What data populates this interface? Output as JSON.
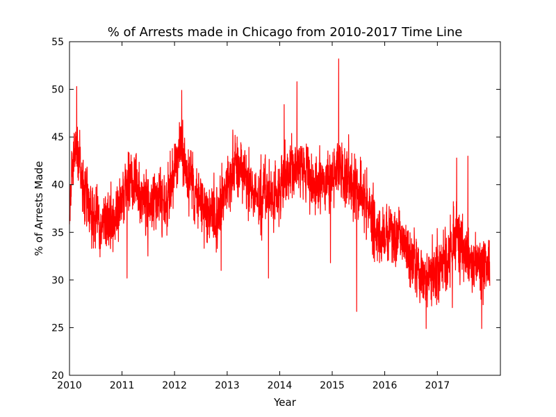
{
  "chart_data": {
    "type": "line",
    "title": "% of Arrests made in Chicago from 2010-2017 Time Line",
    "xlabel": "Year",
    "ylabel": "% of Arrests Made",
    "xlim": [
      "2010-01-01",
      "2018-03-15"
    ],
    "ylim": [
      20,
      55
    ],
    "x_ticks": [
      "2010",
      "2011",
      "2012",
      "2013",
      "2014",
      "2015",
      "2016",
      "2017"
    ],
    "y_ticks": [
      20,
      25,
      30,
      35,
      40,
      45,
      50,
      55
    ],
    "grid": false,
    "legend": "none",
    "series": [
      {
        "color": "#ff0000",
        "frequency": "daily",
        "x_start": "2010-01-01",
        "x_end": "2017-12-31",
        "y_noise_amplitude": 3.2,
        "y_trend": [
          {
            "x": "2010-01-01",
            "y": 39.0
          },
          {
            "x": "2010-02-15",
            "y": 44.5
          },
          {
            "x": "2010-04-15",
            "y": 39.0
          },
          {
            "x": "2010-08-01",
            "y": 36.0
          },
          {
            "x": "2010-11-15",
            "y": 36.0
          },
          {
            "x": "2011-02-15",
            "y": 41.0
          },
          {
            "x": "2011-06-01",
            "y": 38.0
          },
          {
            "x": "2011-11-01",
            "y": 38.0
          },
          {
            "x": "2012-02-15",
            "y": 43.5
          },
          {
            "x": "2012-06-01",
            "y": 38.5
          },
          {
            "x": "2012-10-15",
            "y": 36.5
          },
          {
            "x": "2013-03-01",
            "y": 42.5
          },
          {
            "x": "2013-07-01",
            "y": 39.5
          },
          {
            "x": "2013-11-15",
            "y": 38.0
          },
          {
            "x": "2014-04-01",
            "y": 42.0
          },
          {
            "x": "2014-09-01",
            "y": 39.5
          },
          {
            "x": "2015-03-01",
            "y": 42.0
          },
          {
            "x": "2015-08-01",
            "y": 39.0
          },
          {
            "x": "2015-12-15",
            "y": 34.5
          },
          {
            "x": "2016-04-01",
            "y": 35.0
          },
          {
            "x": "2016-09-15",
            "y": 30.0
          },
          {
            "x": "2017-01-15",
            "y": 31.0
          },
          {
            "x": "2017-05-01",
            "y": 34.0
          },
          {
            "x": "2017-09-01",
            "y": 31.5
          },
          {
            "x": "2017-12-31",
            "y": 32.0
          }
        ],
        "spikes": [
          {
            "x": "2010-02-20",
            "y": 50.3
          },
          {
            "x": "2011-02-05",
            "y": 30.2
          },
          {
            "x": "2012-02-20",
            "y": 49.9
          },
          {
            "x": "2012-11-20",
            "y": 31.0
          },
          {
            "x": "2013-10-15",
            "y": 30.2
          },
          {
            "x": "2014-02-01",
            "y": 48.4
          },
          {
            "x": "2014-05-01",
            "y": 50.8
          },
          {
            "x": "2014-12-20",
            "y": 31.8
          },
          {
            "x": "2015-02-15",
            "y": 53.2
          },
          {
            "x": "2015-06-20",
            "y": 26.7
          },
          {
            "x": "2016-10-15",
            "y": 24.9
          },
          {
            "x": "2017-04-15",
            "y": 27.1
          },
          {
            "x": "2017-05-15",
            "y": 42.8
          },
          {
            "x": "2017-08-01",
            "y": 43.0
          },
          {
            "x": "2017-11-05",
            "y": 24.9
          }
        ]
      }
    ]
  }
}
